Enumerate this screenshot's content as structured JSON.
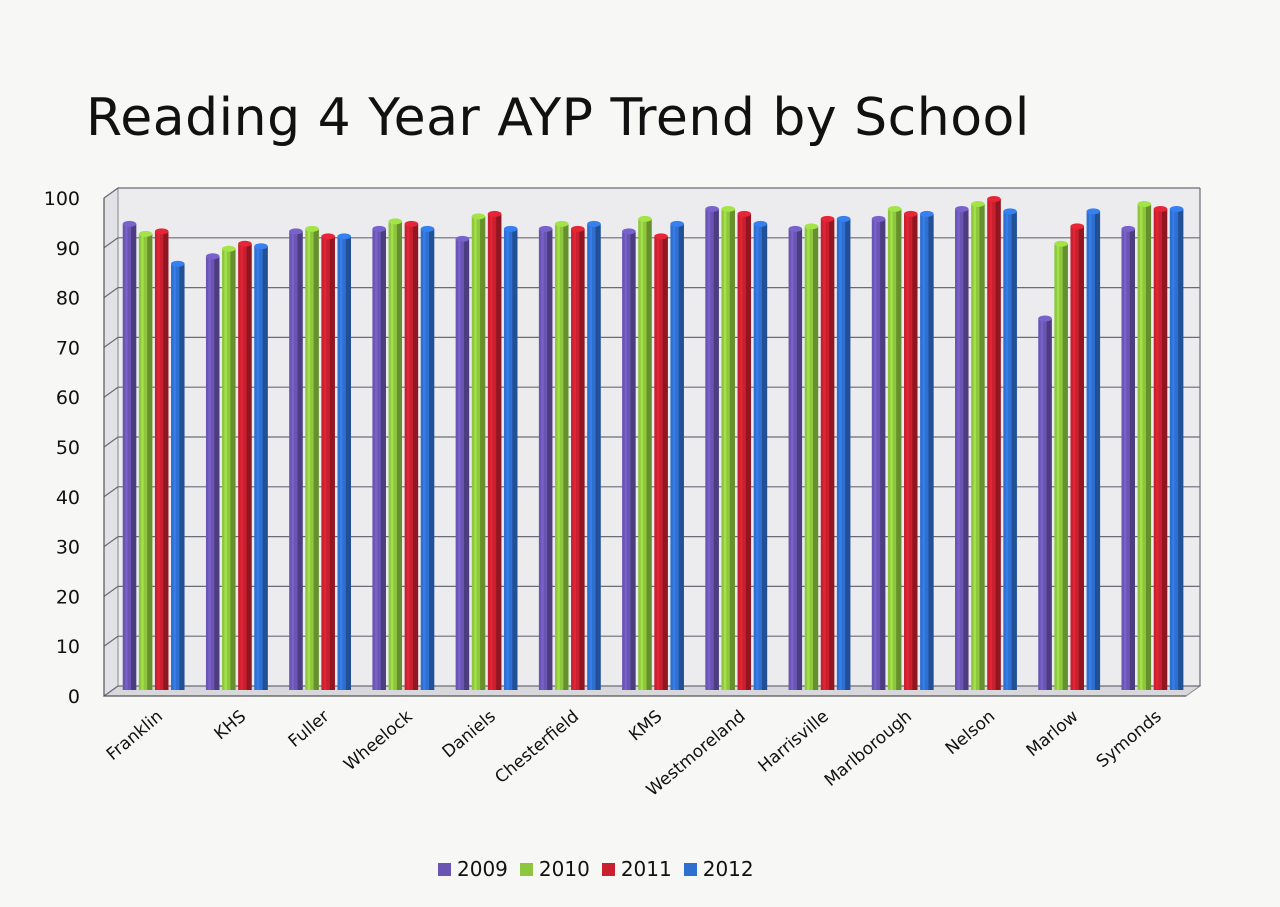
{
  "chart_data": {
    "type": "bar",
    "title": "Reading 4 Year AYP Trend by School",
    "xlabel": "",
    "ylabel": "",
    "ylim": [
      0,
      100
    ],
    "yticks": [
      "0",
      "10",
      "20",
      "30",
      "40",
      "50",
      "60",
      "70",
      "80",
      "90",
      "100"
    ],
    "grid": true,
    "legend_position": "bottom",
    "categories": [
      "Franklin",
      "KHS",
      "Fuller",
      "Wheelock",
      "Daniels",
      "Chesterfield",
      "KMS",
      "Westmoreland",
      "Harrisville",
      "Marlborough",
      "Nelson",
      "Marlow",
      "Symonds"
    ],
    "series": [
      {
        "name": "2009",
        "color": "#6a55b2",
        "values": [
          94,
          87.5,
          92.5,
          93,
          91,
          93,
          92.5,
          97,
          93,
          95,
          97,
          75,
          93
        ]
      },
      {
        "name": "2010",
        "color": "#8ec63f",
        "values": [
          92,
          89,
          93,
          94.5,
          95.5,
          94,
          95,
          97,
          93.5,
          97,
          98,
          90,
          98
        ]
      },
      {
        "name": "2011",
        "color": "#c8202f",
        "values": [
          92.5,
          90,
          91.5,
          94,
          96,
          93,
          91.5,
          96,
          95,
          96,
          99,
          93.5,
          97
        ]
      },
      {
        "name": "2012",
        "color": "#2f6fd0",
        "values": [
          86,
          89.5,
          91.5,
          93,
          93,
          94,
          94,
          94,
          95,
          96,
          96.5,
          96.5,
          97
        ]
      }
    ]
  }
}
